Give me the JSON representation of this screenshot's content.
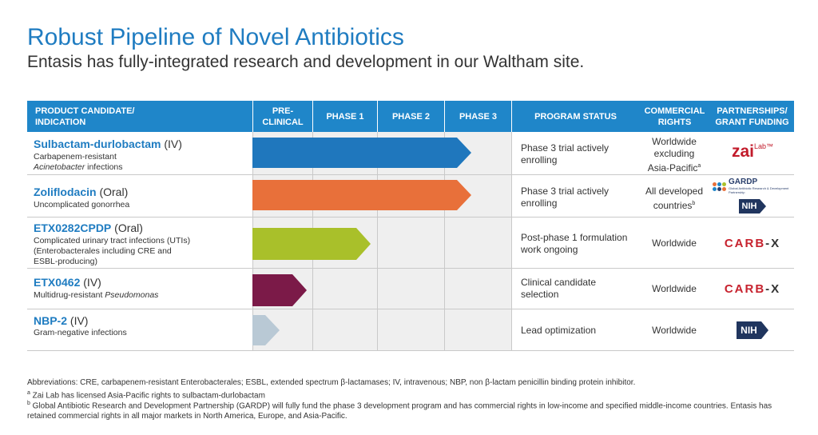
{
  "title": "Robust Pipeline of Novel Antibiotics",
  "subtitle": "Entasis has fully-integrated research and development in our Waltham site.",
  "headers": {
    "product": [
      "PRODUCT CANDIDATE/",
      "INDICATION"
    ],
    "preclinical": [
      "PRE-",
      "CLINICAL"
    ],
    "phase1": "PHASE 1",
    "phase2": "PHASE 2",
    "phase3": "PHASE 3",
    "status": "PROGRAM STATUS",
    "rights": [
      "COMMERCIAL",
      "RIGHTS"
    ],
    "partners": [
      "PARTNERSHIPS/",
      "GRANT FUNDING"
    ]
  },
  "rows": [
    {
      "name": "Sulbactam-durlobactam",
      "route": " (IV)",
      "indication_line1": "Carbapenem-resistant",
      "indication_line2_italic": "Acinetobacter",
      "indication_line2_rest": " infections",
      "stage_progress": 3.4,
      "bar_color": "#1f77bd",
      "status_line1": "Phase 3 trial actively",
      "status_line2": "enrolling",
      "rights_line1": "Worldwide",
      "rights_line2": "excluding",
      "rights_line3": "Asia-Pacific",
      "rights_sup": "a",
      "partner_name": "zai-lab-logo",
      "partner_text": "zai",
      "partner_text2": "Lab",
      "partner_mark": "™"
    },
    {
      "name": "Zoliflodacin",
      "route": " (Oral)",
      "indication_line1": "Uncomplicated gonorrhea",
      "stage_progress": 3.4,
      "bar_color": "#e8703a",
      "status_line1": "Phase 3 trial actively",
      "status_line2": "enrolling",
      "rights_line1": "All developed",
      "rights_line2": "countries",
      "rights_sup": "b",
      "partner_name": "gardp-nih-logos",
      "gardp_text": "GARDP",
      "gardp_sub": "Global Antibiotic Research & Development Partnership",
      "nih_text": "NIH"
    },
    {
      "name": "ETX0282CPDP",
      "route": " (Oral)",
      "indication_line1": "Complicated urinary tract infections (UTIs)",
      "indication_line2": "(Enterobacterales including CRE and",
      "indication_line3": "ESBL-producing)",
      "stage_progress": 1.9,
      "bar_color": "#a9c02a",
      "status_line1": "Post-phase 1 formulation",
      "status_line2": "work ongoing",
      "rights_line1": "Worldwide",
      "partner_name": "carb-x-logo",
      "carbx_a": "CARB",
      "carbx_b": "-X"
    },
    {
      "name": "ETX0462",
      "route": " (IV)",
      "indication_line1_plain": "Multidrug-resistant ",
      "indication_line1_italic": "Pseudomonas",
      "stage_progress": 0.9,
      "bar_color": "#7b1a48",
      "status_line1": "Clinical candidate",
      "status_line2": "selection",
      "rights_line1": "Worldwide",
      "partner_name": "carb-x-logo",
      "carbx_a": "CARB",
      "carbx_b": "-X"
    },
    {
      "name": "NBP-2",
      "route": " (IV)",
      "indication_line1": "Gram-negative infections",
      "stage_progress": 0.45,
      "bar_color": "#b9c9d5",
      "status_line1": "Lead optimization",
      "rights_line1": "Worldwide",
      "partner_name": "nih-logo",
      "nih_text": "NIH"
    }
  ],
  "footnotes": {
    "abbr": "Abbreviations: CRE, carbapenem-resistant Enterobacterales; ESBL, extended spectrum β-lactamases; IV, intravenous; NBP, non β-lactam penicillin binding protein inhibitor.",
    "a_mark": "a",
    "a_text": " Zai Lab has licensed Asia-Pacific rights to sulbactam-durlobactam",
    "b_mark": "b",
    "b_text": " Global Antibiotic Research and Development Partnership (GARDP) will fully fund the phase 3 development program and has commercial rights in low-income and specified middle-income countries. Entasis has retained commercial rights in all major markets in North America, Europe, and Asia-Pacific."
  }
}
